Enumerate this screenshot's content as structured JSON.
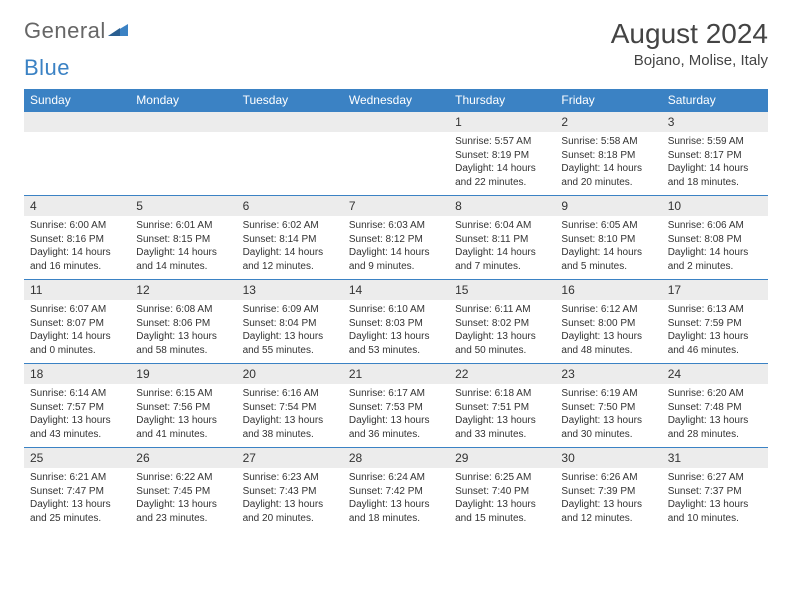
{
  "logo": {
    "part1": "General",
    "part2": "Blue"
  },
  "title": "August 2024",
  "location": "Bojano, Molise, Italy",
  "colors": {
    "header_bg": "#3b82c4",
    "header_text": "#ffffff",
    "daynum_bg": "#ececec",
    "row_border": "#3b82c4",
    "text": "#333333",
    "page_bg": "#ffffff"
  },
  "dayNames": [
    "Sunday",
    "Monday",
    "Tuesday",
    "Wednesday",
    "Thursday",
    "Friday",
    "Saturday"
  ],
  "weeks": [
    [
      {
        "empty": true
      },
      {
        "empty": true
      },
      {
        "empty": true
      },
      {
        "empty": true
      },
      {
        "day": "1",
        "sunrise": "5:57 AM",
        "sunset": "8:19 PM",
        "daylight": "14 hours and 22 minutes."
      },
      {
        "day": "2",
        "sunrise": "5:58 AM",
        "sunset": "8:18 PM",
        "daylight": "14 hours and 20 minutes."
      },
      {
        "day": "3",
        "sunrise": "5:59 AM",
        "sunset": "8:17 PM",
        "daylight": "14 hours and 18 minutes."
      }
    ],
    [
      {
        "day": "4",
        "sunrise": "6:00 AM",
        "sunset": "8:16 PM",
        "daylight": "14 hours and 16 minutes."
      },
      {
        "day": "5",
        "sunrise": "6:01 AM",
        "sunset": "8:15 PM",
        "daylight": "14 hours and 14 minutes."
      },
      {
        "day": "6",
        "sunrise": "6:02 AM",
        "sunset": "8:14 PM",
        "daylight": "14 hours and 12 minutes."
      },
      {
        "day": "7",
        "sunrise": "6:03 AM",
        "sunset": "8:12 PM",
        "daylight": "14 hours and 9 minutes."
      },
      {
        "day": "8",
        "sunrise": "6:04 AM",
        "sunset": "8:11 PM",
        "daylight": "14 hours and 7 minutes."
      },
      {
        "day": "9",
        "sunrise": "6:05 AM",
        "sunset": "8:10 PM",
        "daylight": "14 hours and 5 minutes."
      },
      {
        "day": "10",
        "sunrise": "6:06 AM",
        "sunset": "8:08 PM",
        "daylight": "14 hours and 2 minutes."
      }
    ],
    [
      {
        "day": "11",
        "sunrise": "6:07 AM",
        "sunset": "8:07 PM",
        "daylight": "14 hours and 0 minutes."
      },
      {
        "day": "12",
        "sunrise": "6:08 AM",
        "sunset": "8:06 PM",
        "daylight": "13 hours and 58 minutes."
      },
      {
        "day": "13",
        "sunrise": "6:09 AM",
        "sunset": "8:04 PM",
        "daylight": "13 hours and 55 minutes."
      },
      {
        "day": "14",
        "sunrise": "6:10 AM",
        "sunset": "8:03 PM",
        "daylight": "13 hours and 53 minutes."
      },
      {
        "day": "15",
        "sunrise": "6:11 AM",
        "sunset": "8:02 PM",
        "daylight": "13 hours and 50 minutes."
      },
      {
        "day": "16",
        "sunrise": "6:12 AM",
        "sunset": "8:00 PM",
        "daylight": "13 hours and 48 minutes."
      },
      {
        "day": "17",
        "sunrise": "6:13 AM",
        "sunset": "7:59 PM",
        "daylight": "13 hours and 46 minutes."
      }
    ],
    [
      {
        "day": "18",
        "sunrise": "6:14 AM",
        "sunset": "7:57 PM",
        "daylight": "13 hours and 43 minutes."
      },
      {
        "day": "19",
        "sunrise": "6:15 AM",
        "sunset": "7:56 PM",
        "daylight": "13 hours and 41 minutes."
      },
      {
        "day": "20",
        "sunrise": "6:16 AM",
        "sunset": "7:54 PM",
        "daylight": "13 hours and 38 minutes."
      },
      {
        "day": "21",
        "sunrise": "6:17 AM",
        "sunset": "7:53 PM",
        "daylight": "13 hours and 36 minutes."
      },
      {
        "day": "22",
        "sunrise": "6:18 AM",
        "sunset": "7:51 PM",
        "daylight": "13 hours and 33 minutes."
      },
      {
        "day": "23",
        "sunrise": "6:19 AM",
        "sunset": "7:50 PM",
        "daylight": "13 hours and 30 minutes."
      },
      {
        "day": "24",
        "sunrise": "6:20 AM",
        "sunset": "7:48 PM",
        "daylight": "13 hours and 28 minutes."
      }
    ],
    [
      {
        "day": "25",
        "sunrise": "6:21 AM",
        "sunset": "7:47 PM",
        "daylight": "13 hours and 25 minutes."
      },
      {
        "day": "26",
        "sunrise": "6:22 AM",
        "sunset": "7:45 PM",
        "daylight": "13 hours and 23 minutes."
      },
      {
        "day": "27",
        "sunrise": "6:23 AM",
        "sunset": "7:43 PM",
        "daylight": "13 hours and 20 minutes."
      },
      {
        "day": "28",
        "sunrise": "6:24 AM",
        "sunset": "7:42 PM",
        "daylight": "13 hours and 18 minutes."
      },
      {
        "day": "29",
        "sunrise": "6:25 AM",
        "sunset": "7:40 PM",
        "daylight": "13 hours and 15 minutes."
      },
      {
        "day": "30",
        "sunrise": "6:26 AM",
        "sunset": "7:39 PM",
        "daylight": "13 hours and 12 minutes."
      },
      {
        "day": "31",
        "sunrise": "6:27 AM",
        "sunset": "7:37 PM",
        "daylight": "13 hours and 10 minutes."
      }
    ]
  ],
  "labels": {
    "sunrise": "Sunrise: ",
    "sunset": "Sunset: ",
    "daylight": "Daylight: "
  }
}
